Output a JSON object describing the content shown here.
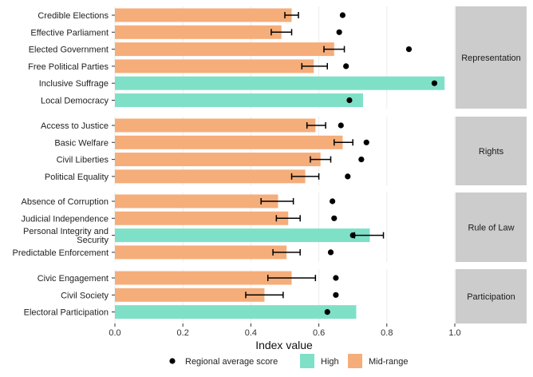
{
  "chart_data": {
    "type": "bar",
    "xlabel": "Index value",
    "xlim": [
      0,
      1
    ],
    "xticks": [
      "0.0",
      "0.2",
      "0.4",
      "0.6",
      "0.8",
      "1.0"
    ],
    "colors": {
      "High": "#7fe0c8",
      "Mid-range": "#f5ad7a",
      "regional": "#000000",
      "strip": "#cccccc"
    },
    "legend": {
      "position": "bottom",
      "items": [
        {
          "label": "Regional average score",
          "kind": "point"
        },
        {
          "label": "High",
          "kind": "fill"
        },
        {
          "label": "Mid-range",
          "kind": "fill"
        }
      ]
    },
    "panels": [
      {
        "name": "Representation",
        "rows": [
          {
            "label": "Credible Elections",
            "value": 0.52,
            "level": "Mid-range",
            "err": [
              0.5,
              0.54
            ],
            "regional": 0.67
          },
          {
            "label": "Effective Parliament",
            "value": 0.49,
            "level": "Mid-range",
            "err": [
              0.46,
              0.52
            ],
            "regional": 0.66
          },
          {
            "label": "Elected Government",
            "value": 0.645,
            "level": "Mid-range",
            "err": [
              0.615,
              0.675
            ],
            "regional": 0.865
          },
          {
            "label": "Free Political Parties",
            "value": 0.585,
            "level": "Mid-range",
            "err": [
              0.55,
              0.625
            ],
            "regional": 0.68
          },
          {
            "label": "Inclusive Suffrage",
            "value": 0.97,
            "level": "High",
            "err": null,
            "regional": 0.94
          },
          {
            "label": "Local Democracy",
            "value": 0.73,
            "level": "High",
            "err": null,
            "regional": 0.69
          }
        ]
      },
      {
        "name": "Rights",
        "rows": [
          {
            "label": "Access to Justice",
            "value": 0.59,
            "level": "Mid-range",
            "err": [
              0.565,
              0.62
            ],
            "regional": 0.665
          },
          {
            "label": "Basic Welfare",
            "value": 0.67,
            "level": "Mid-range",
            "err": [
              0.645,
              0.7
            ],
            "regional": 0.74
          },
          {
            "label": "Civil Liberties",
            "value": 0.605,
            "level": "Mid-range",
            "err": [
              0.575,
              0.635
            ],
            "regional": 0.725
          },
          {
            "label": "Political Equality",
            "value": 0.56,
            "level": "Mid-range",
            "err": [
              0.52,
              0.6
            ],
            "regional": 0.685
          }
        ]
      },
      {
        "name": "Rule of Law",
        "rows": [
          {
            "label": "Absence of Corruption",
            "value": 0.48,
            "level": "Mid-range",
            "err": [
              0.43,
              0.525
            ],
            "regional": 0.64
          },
          {
            "label": "Judicial Independence",
            "value": 0.51,
            "level": "Mid-range",
            "err": [
              0.475,
              0.545
            ],
            "regional": 0.645
          },
          {
            "label": "Personal Integrity and\nSecurity",
            "value": 0.75,
            "level": "High",
            "err": [
              0.705,
              0.79
            ],
            "regional": 0.7
          },
          {
            "label": "Predictable Enforcement",
            "value": 0.505,
            "level": "Mid-range",
            "err": [
              0.465,
              0.545
            ],
            "regional": 0.635
          }
        ]
      },
      {
        "name": "Participation",
        "rows": [
          {
            "label": "Civic Engagement",
            "value": 0.52,
            "level": "Mid-range",
            "err": [
              0.45,
              0.59
            ],
            "regional": 0.65
          },
          {
            "label": "Civil Society",
            "value": 0.44,
            "level": "Mid-range",
            "err": [
              0.385,
              0.495
            ],
            "regional": 0.65
          },
          {
            "label": "Electoral Participation",
            "value": 0.71,
            "level": "High",
            "err": null,
            "regional": 0.625
          }
        ]
      }
    ]
  }
}
